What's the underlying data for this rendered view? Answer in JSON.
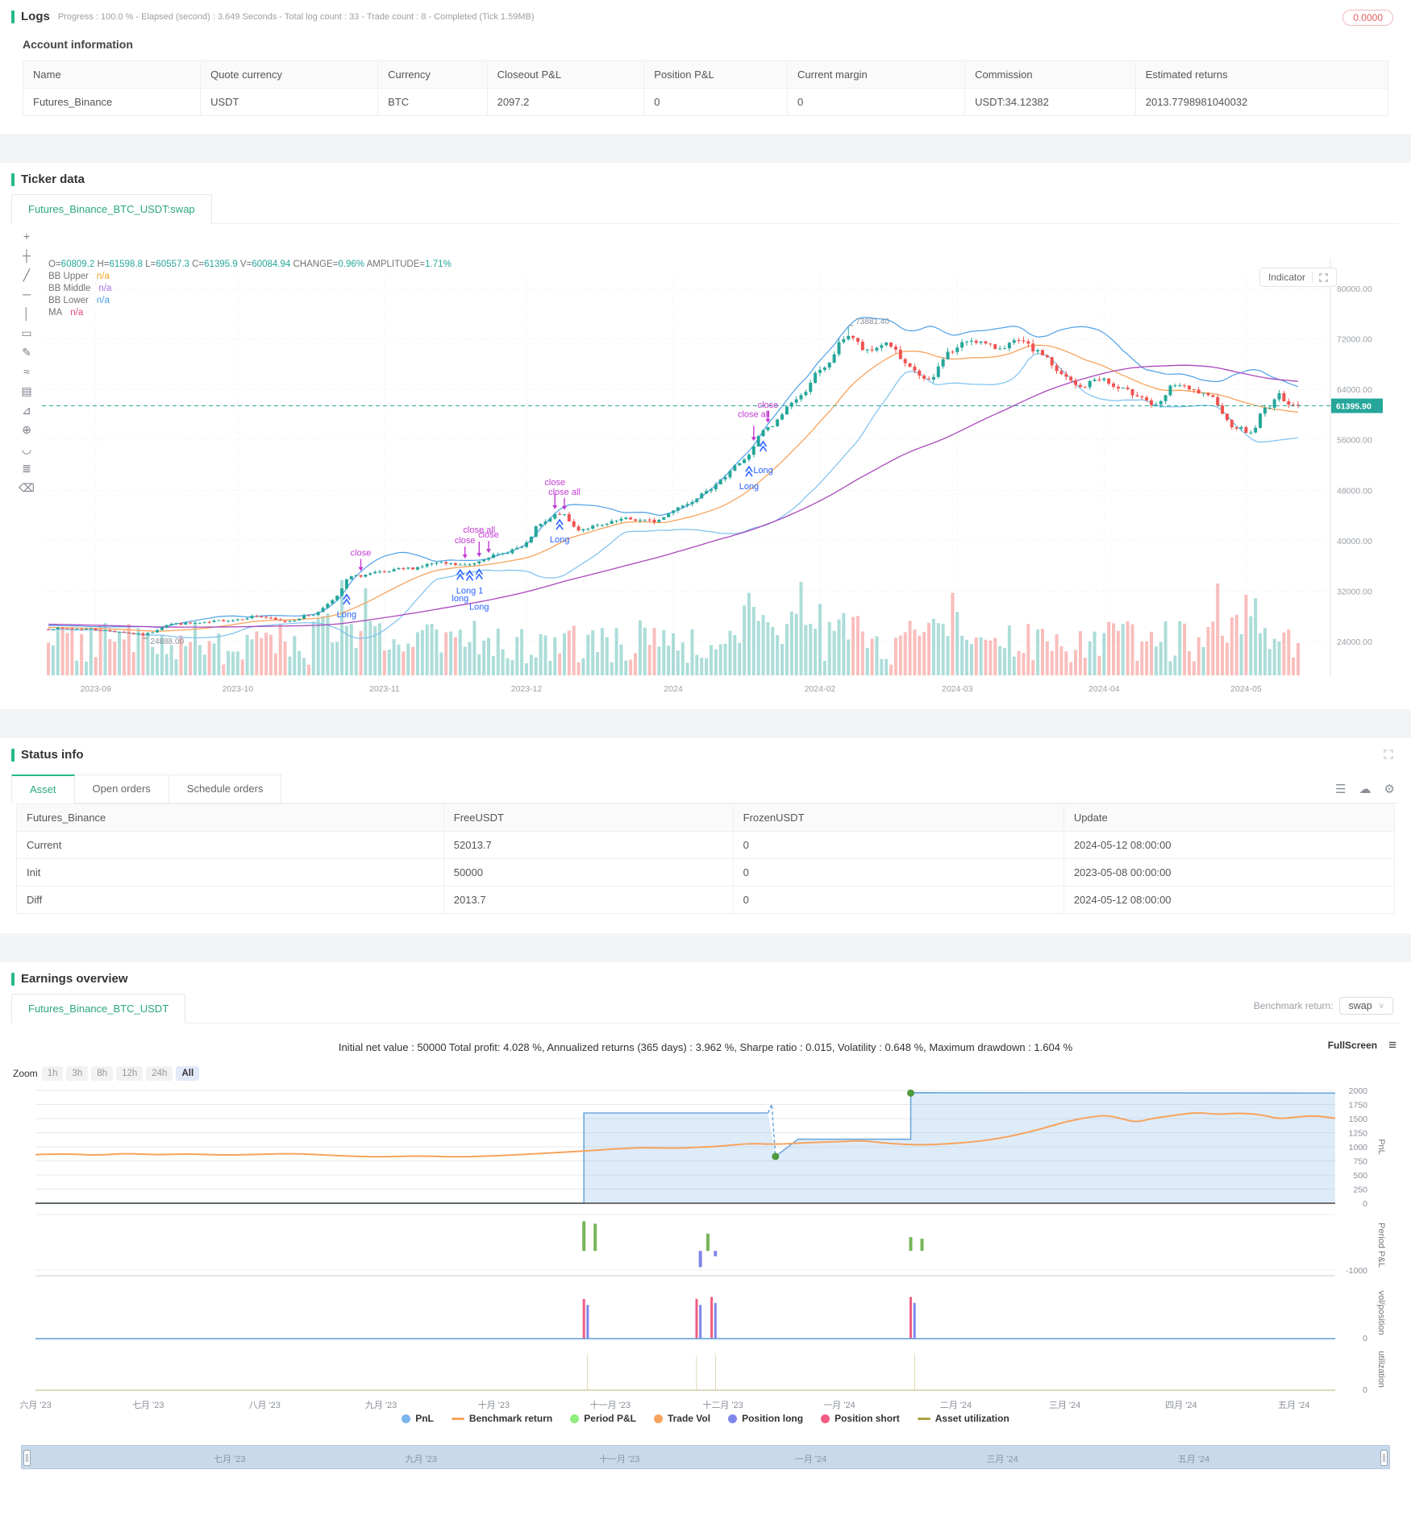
{
  "logs": {
    "title": "Logs",
    "subtitle": "Progress : 100.0 % - Elapsed (second) : 3.649  Seconds - Total log count : 33 - Trade count : 8 - Completed (Tick 1.59MB)",
    "badge": "0.0000"
  },
  "account": {
    "title": "Account information",
    "headers": [
      "Name",
      "Quote currency",
      "Currency",
      "Closeout P&L",
      "Position P&L",
      "Current margin",
      "Commission",
      "Estimated returns"
    ],
    "row": [
      "Futures_Binance",
      "USDT",
      "BTC",
      "2097.2",
      "0",
      "0",
      "USDT:34.12382",
      "2013.7798981040032"
    ]
  },
  "ticker": {
    "title": "Ticker data",
    "tab": "Futures_Binance_BTC_USDT:swap",
    "indicator_button": "Indicator",
    "toolbar": [
      {
        "name": "cursor-icon",
        "glyph": "+"
      },
      {
        "name": "crosshair-icon",
        "glyph": "┼"
      },
      {
        "name": "trend-line-icon",
        "glyph": "╱"
      },
      {
        "name": "horizontal-line-icon",
        "glyph": "─"
      },
      {
        "name": "vertical-line-icon",
        "glyph": "│"
      },
      {
        "name": "rectangle-icon",
        "glyph": "▭"
      },
      {
        "name": "pencil-icon",
        "glyph": "✎"
      },
      {
        "name": "wave-icon",
        "glyph": "≈"
      },
      {
        "name": "fib-icon",
        "glyph": "▤"
      },
      {
        "name": "measure-icon",
        "glyph": "⊿"
      },
      {
        "name": "zoom-in-icon",
        "glyph": "⊕"
      },
      {
        "name": "magnet-icon",
        "glyph": "◡"
      },
      {
        "name": "layers-icon",
        "glyph": "≣"
      },
      {
        "name": "trash-icon",
        "glyph": "⌫"
      }
    ],
    "ohlc": [
      [
        "O=",
        "60809.2"
      ],
      [
        "H=",
        "61598.8"
      ],
      [
        "L=",
        "60557.3"
      ],
      [
        "C=",
        "61395.9"
      ],
      [
        "V=",
        "60084.94"
      ],
      [
        "CHANGE=",
        "0.96%"
      ],
      [
        "AMPLITUDE=",
        "1.71%"
      ]
    ],
    "indicators": [
      {
        "label": "BB Upper",
        "value": "n/a",
        "color": "#f5a623"
      },
      {
        "label": "BB Middle",
        "value": "n/a",
        "color": "#a96fe3"
      },
      {
        "label": "BB Lower",
        "value": "n/a",
        "color": "#4a9fe8"
      },
      {
        "label": "MA",
        "value": "n/a",
        "color": "#e5457a"
      }
    ]
  },
  "status": {
    "title": "Status info",
    "tabs": [
      "Asset",
      "Open orders",
      "Schedule orders"
    ],
    "active_tab": "Asset",
    "table": {
      "headers": [
        "Futures_Binance",
        "FreeUSDT",
        "FrozenUSDT",
        "Update"
      ],
      "rows": [
        [
          "Current",
          "52013.7",
          "0",
          "2024-05-12 08:00:00"
        ],
        [
          "Init",
          "50000",
          "0",
          "2023-05-08 00:00:00"
        ],
        [
          "Diff",
          "2013.7",
          "0",
          "2024-05-12 08:00:00"
        ]
      ]
    }
  },
  "earnings": {
    "title": "Earnings overview",
    "tab": "Futures_Binance_BTC_USDT",
    "benchmark_label": "Benchmark return:",
    "benchmark_value": "swap",
    "stats": "Initial net value : 50000 Total profit: 4.028 %, Annualized returns (365 days) : 3.962 %, Sharpe ratio : 0.015, Volatility : 0.648 %, Maximum drawdown : 1.604 %",
    "fullscreen_label": "FullScreen",
    "zoom_label": "Zoom",
    "zoom_buttons": [
      "1h",
      "3h",
      "8h",
      "12h",
      "24h",
      "All"
    ],
    "zoom_active": "All"
  },
  "chart_data": [
    {
      "type": "candlestick",
      "title": "Futures_Binance_BTC_USDT:swap",
      "y_ticks": [
        80000,
        72000,
        64000,
        56000,
        48000,
        40000,
        32000,
        24000
      ],
      "ylim": [
        24000,
        80000
      ],
      "x_labels": [
        {
          "label": "2023-09",
          "day": 10
        },
        {
          "label": "2023-10",
          "day": 40
        },
        {
          "label": "2023-11",
          "day": 71
        },
        {
          "label": "2023-12",
          "day": 101
        },
        {
          "label": "2024",
          "day": 132
        },
        {
          "label": "2024-02",
          "day": 163
        },
        {
          "label": "2024-03",
          "day": 192
        },
        {
          "label": "2024-04",
          "day": 223
        },
        {
          "label": "2024-05",
          "day": 253
        }
      ],
      "days": 264,
      "anchors": [
        [
          0,
          26050
        ],
        [
          8,
          26000
        ],
        [
          14,
          25600
        ],
        [
          20,
          25100
        ],
        [
          26,
          26800
        ],
        [
          32,
          26900
        ],
        [
          38,
          27400
        ],
        [
          44,
          28000
        ],
        [
          50,
          27200
        ],
        [
          56,
          28300
        ],
        [
          60,
          30500
        ],
        [
          64,
          34300
        ],
        [
          70,
          34900
        ],
        [
          76,
          35600
        ],
        [
          82,
          36400
        ],
        [
          88,
          36100
        ],
        [
          94,
          37600
        ],
        [
          100,
          38900
        ],
        [
          104,
          42600
        ],
        [
          108,
          44300
        ],
        [
          112,
          41800
        ],
        [
          116,
          42300
        ],
        [
          122,
          43400
        ],
        [
          128,
          43100
        ],
        [
          134,
          45600
        ],
        [
          140,
          48400
        ],
        [
          146,
          52300
        ],
        [
          152,
          57800
        ],
        [
          158,
          62400
        ],
        [
          163,
          66800
        ],
        [
          169,
          72600
        ],
        [
          173,
          69900
        ],
        [
          177,
          71400
        ],
        [
          182,
          67300
        ],
        [
          186,
          65200
        ],
        [
          190,
          69800
        ],
        [
          195,
          71900
        ],
        [
          200,
          70600
        ],
        [
          205,
          71500
        ],
        [
          210,
          69600
        ],
        [
          214,
          66200
        ],
        [
          218,
          64300
        ],
        [
          222,
          65800
        ],
        [
          226,
          64100
        ],
        [
          230,
          63200
        ],
        [
          234,
          61300
        ],
        [
          238,
          64800
        ],
        [
          242,
          63700
        ],
        [
          246,
          62500
        ],
        [
          250,
          58300
        ],
        [
          254,
          57100
        ],
        [
          257,
          60900
        ],
        [
          260,
          63000
        ],
        [
          262,
          61900
        ],
        [
          264,
          61395.9
        ]
      ],
      "high": {
        "day": 169,
        "value": 73881.4,
        "label": "73881.40"
      },
      "low": {
        "day": 20,
        "value": 24888.0,
        "label": "24888.00"
      },
      "last_price": 61395.9,
      "price_label": "61395.90",
      "vol_spike_days": [
        60,
        64,
        150,
        160,
        168,
        190,
        248,
        254
      ],
      "sells": [
        {
          "day": 66,
          "label": "close",
          "lift": 0
        },
        {
          "day": 88,
          "label": "close",
          "lift": 0
        },
        {
          "day": 91,
          "label": "close all",
          "lift": 1
        },
        {
          "day": 93,
          "label": "close",
          "lift": 0
        },
        {
          "day": 107,
          "label": "close",
          "lift": 1
        },
        {
          "day": 109,
          "label": "close all",
          "lift": 0
        },
        {
          "day": 149,
          "label": "close all",
          "lift": 1
        },
        {
          "day": 152,
          "label": "close",
          "lift": 0
        }
      ],
      "buys": [
        {
          "day": 63,
          "label": "Long",
          "lift": 0
        },
        {
          "day": 87,
          "label": "long",
          "lift": 1
        },
        {
          "day": 89,
          "label": "Long 1",
          "lift": 0
        },
        {
          "day": 91,
          "label": "Long",
          "lift": 2
        },
        {
          "day": 108,
          "label": "Long",
          "lift": 0
        },
        {
          "day": 148,
          "label": "Long",
          "lift": 0
        },
        {
          "day": 151,
          "label": "Long",
          "lift": 1
        }
      ],
      "colors": {
        "up": "#26a69a",
        "down": "#ef5350",
        "ma20": "#f7a35c",
        "ma80": "#ab47bc",
        "bb_upper": "#4d9fe8",
        "bb_lower": "#7cc0ee",
        "price_line": "#26a69a",
        "sell": "#c13ad1",
        "buy": "#2962ff"
      }
    },
    {
      "type": "multi-panel-timeseries",
      "days": 346,
      "panel_titles": [
        "PnL",
        "Period P&L",
        "vol/position",
        "utilization"
      ],
      "pnl": {
        "ticks": [
          2000,
          1750,
          1500,
          1250,
          1000,
          750,
          500,
          250,
          0
        ],
        "ylim": [
          0,
          2000
        ],
        "steps_solid_1": [
          [
            0,
            0
          ],
          [
            146,
            0
          ],
          [
            146,
            1600
          ],
          [
            195,
            1600
          ]
        ],
        "steps_dashed": [
          [
            195,
            1600
          ],
          [
            196,
            1755
          ],
          [
            197,
            830
          ]
        ],
        "steps_solid_2": [
          [
            197,
            830
          ],
          [
            203,
            1135
          ],
          [
            233,
            1135
          ],
          [
            233,
            1960
          ],
          [
            346,
            1952
          ]
        ],
        "fill_points": [
          [
            0,
            0
          ],
          [
            146,
            0
          ],
          [
            146,
            1600
          ],
          [
            195,
            1600
          ],
          [
            197,
            830
          ],
          [
            203,
            1135
          ],
          [
            233,
            1135
          ],
          [
            233,
            1960
          ],
          [
            346,
            1952
          ]
        ],
        "dots": [
          [
            197,
            830
          ],
          [
            233,
            1952
          ]
        ],
        "benchmark": [
          [
            0,
            862
          ],
          [
            8,
            880
          ],
          [
            16,
            848
          ],
          [
            24,
            884
          ],
          [
            32,
            858
          ],
          [
            40,
            876
          ],
          [
            50,
            852
          ],
          [
            61,
            870
          ],
          [
            70,
            882
          ],
          [
            80,
            844
          ],
          [
            92,
            818
          ],
          [
            102,
            842
          ],
          [
            112,
            820
          ],
          [
            122,
            838
          ],
          [
            132,
            872
          ],
          [
            140,
            902
          ],
          [
            148,
            934
          ],
          [
            154,
            962
          ],
          [
            162,
            988
          ],
          [
            170,
            974
          ],
          [
            176,
            992
          ],
          [
            183,
            1012
          ],
          [
            190,
            1062
          ],
          [
            197,
            1042
          ],
          [
            205,
            1072
          ],
          [
            214,
            1092
          ],
          [
            220,
            1112
          ],
          [
            228,
            1052
          ],
          [
            236,
            1032
          ],
          [
            245,
            1062
          ],
          [
            250,
            1092
          ],
          [
            256,
            1142
          ],
          [
            262,
            1222
          ],
          [
            268,
            1322
          ],
          [
            274,
            1442
          ],
          [
            280,
            1522
          ],
          [
            285,
            1562
          ],
          [
            289,
            1502
          ],
          [
            293,
            1432
          ],
          [
            297,
            1502
          ],
          [
            303,
            1556
          ],
          [
            309,
            1612
          ],
          [
            315,
            1572
          ],
          [
            321,
            1602
          ],
          [
            327,
            1562
          ],
          [
            331,
            1492
          ],
          [
            336,
            1532
          ],
          [
            341,
            1552
          ],
          [
            346,
            1506
          ]
        ]
      },
      "period": {
        "ylim": [
          -1300,
          1900
        ],
        "tick": -1000,
        "bars": [
          {
            "d": 146,
            "v": 1550
          },
          {
            "d": 149,
            "v": 1420
          },
          {
            "d": 177,
            "v": -850
          },
          {
            "d": 179,
            "v": 900
          },
          {
            "d": 181,
            "v": -280
          },
          {
            "d": 233,
            "v": 720
          },
          {
            "d": 236,
            "v": 640
          }
        ]
      },
      "volpos": {
        "ylim": [
          0,
          1.3
        ],
        "bars": [
          {
            "d": 146,
            "v": 1.0,
            "c": "short"
          },
          {
            "d": 147,
            "v": 0.85,
            "c": "long"
          },
          {
            "d": 176,
            "v": 1.0,
            "c": "short"
          },
          {
            "d": 177,
            "v": 0.85,
            "c": "long"
          },
          {
            "d": 180,
            "v": 1.05,
            "c": "short"
          },
          {
            "d": 181,
            "v": 0.9,
            "c": "long"
          },
          {
            "d": 233,
            "v": 1.05,
            "c": "short"
          },
          {
            "d": 234,
            "v": 0.9,
            "c": "long"
          }
        ]
      },
      "utilization": {
        "ylim": [
          0,
          1.1
        ],
        "bars": [
          {
            "d": 147,
            "v": 0.95
          },
          {
            "d": 176,
            "v": 0.9
          },
          {
            "d": 181,
            "v": 0.95
          },
          {
            "d": 234,
            "v": 0.97
          }
        ]
      },
      "x_labels": [
        {
          "label": "六月 '23",
          "day": 0
        },
        {
          "label": "七月 '23",
          "day": 30
        },
        {
          "label": "八月 '23",
          "day": 61
        },
        {
          "label": "九月 '23",
          "day": 92
        },
        {
          "label": "十月 '23",
          "day": 122
        },
        {
          "label": "十一月 '23",
          "day": 153
        },
        {
          "label": "十二月 '23",
          "day": 183
        },
        {
          "label": "一月 '24",
          "day": 214
        },
        {
          "label": "二月 '24",
          "day": 245
        },
        {
          "label": "三月 '24",
          "day": 274
        },
        {
          "label": "四月 '24",
          "day": 305
        },
        {
          "label": "五月 '24",
          "day": 335
        }
      ],
      "legend": [
        {
          "label": "PnL",
          "color": "#7cb5ec",
          "shape": "circle"
        },
        {
          "label": "Benchmark return",
          "color": "#f7a35c",
          "shape": "line"
        },
        {
          "label": "Period P&L",
          "color": "#90ed7d",
          "shape": "circle"
        },
        {
          "label": "Trade Vol",
          "color": "#f7a35c",
          "shape": "circle"
        },
        {
          "label": "Position long",
          "color": "#8085e9",
          "shape": "circle"
        },
        {
          "label": "Position short",
          "color": "#f15c80",
          "shape": "circle"
        },
        {
          "label": "Asset utilization",
          "color": "#a9a23f",
          "shape": "line"
        }
      ],
      "navigator_labels": [
        {
          "label": "七月 '23",
          "pct": 15.2
        },
        {
          "label": "九月 '23",
          "pct": 29.2
        },
        {
          "label": "十一月 '23",
          "pct": 43.7
        },
        {
          "label": "一月 '24",
          "pct": 57.7
        },
        {
          "label": "三月 '24",
          "pct": 71.7
        },
        {
          "label": "五月 '24",
          "pct": 85.7
        }
      ],
      "colors": {
        "pnl": "#6ba7dd",
        "pnl_fill": "rgba(124,181,236,0.25)",
        "benchmark": "#f7a35c",
        "dot": "#4e9a3d",
        "period_up": "#77b55a",
        "period_down": "#8085e9",
        "short": "#f15c80",
        "long": "#8085e9",
        "util": "#a9a23f"
      }
    }
  ]
}
